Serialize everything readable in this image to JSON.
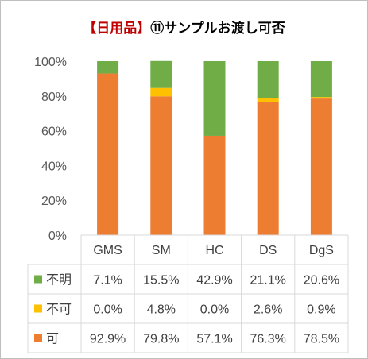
{
  "title": {
    "prefix": "【日用品】",
    "main": "⑪サンプルお渡し可否"
  },
  "chart_data": {
    "type": "bar",
    "stacked": true,
    "percent_stacked": true,
    "categories": [
      "GMS",
      "SM",
      "HC",
      "DS",
      "DgS"
    ],
    "series": [
      {
        "name": "可",
        "color": "#ed7d31",
        "values": [
          92.9,
          79.8,
          57.1,
          76.3,
          78.5
        ],
        "labels": [
          "92.9%",
          "79.8%",
          "57.1%",
          "76.3%",
          "78.5%"
        ]
      },
      {
        "name": "不可",
        "color": "#ffc000",
        "values": [
          0.0,
          4.8,
          0.0,
          2.6,
          0.9
        ],
        "labels": [
          "0.0%",
          "4.8%",
          "0.0%",
          "2.6%",
          "0.9%"
        ]
      },
      {
        "name": "不明",
        "color": "#70ad47",
        "values": [
          7.1,
          15.5,
          42.9,
          21.1,
          20.6
        ],
        "labels": [
          "7.1%",
          "15.5%",
          "42.9%",
          "21.1%",
          "20.6%"
        ]
      }
    ],
    "table_row_order": [
      "不明",
      "不可",
      "可"
    ],
    "ylim": [
      0,
      100
    ],
    "yticks": [
      0,
      20,
      40,
      60,
      80,
      100
    ],
    "ytick_labels": [
      "0%",
      "20%",
      "40%",
      "60%",
      "80%",
      "100%"
    ],
    "grid": false,
    "data_table": true,
    "legend": "data-table-left"
  }
}
